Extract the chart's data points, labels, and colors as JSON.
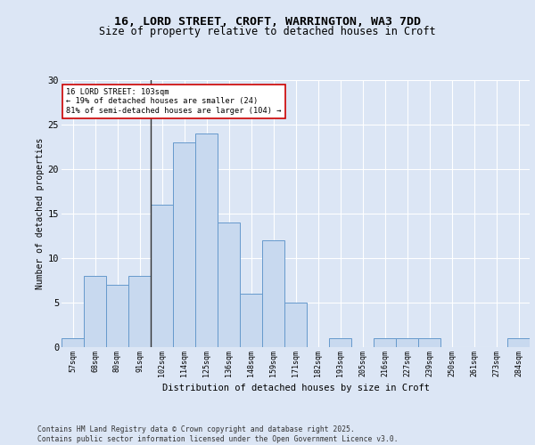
{
  "title_line1": "16, LORD STREET, CROFT, WARRINGTON, WA3 7DD",
  "title_line2": "Size of property relative to detached houses in Croft",
  "xlabel": "Distribution of detached houses by size in Croft",
  "ylabel": "Number of detached properties",
  "categories": [
    "57sqm",
    "68sqm",
    "80sqm",
    "91sqm",
    "102sqm",
    "114sqm",
    "125sqm",
    "136sqm",
    "148sqm",
    "159sqm",
    "171sqm",
    "182sqm",
    "193sqm",
    "205sqm",
    "216sqm",
    "227sqm",
    "239sqm",
    "250sqm",
    "261sqm",
    "273sqm",
    "284sqm"
  ],
  "values": [
    1,
    8,
    7,
    8,
    16,
    23,
    24,
    14,
    6,
    12,
    5,
    0,
    1,
    0,
    1,
    1,
    1,
    0,
    0,
    0,
    1
  ],
  "bar_color": "#c8d9ef",
  "bar_edge_color": "#6699cc",
  "vline_x_index": 4,
  "vline_color": "#333333",
  "ylim": [
    0,
    30
  ],
  "yticks": [
    0,
    5,
    10,
    15,
    20,
    25,
    30
  ],
  "annotation_text": "16 LORD STREET: 103sqm\n← 19% of detached houses are smaller (24)\n81% of semi-detached houses are larger (104) →",
  "annotation_box_color": "#ffffff",
  "annotation_box_edge_color": "#cc0000",
  "footer_text": "Contains HM Land Registry data © Crown copyright and database right 2025.\nContains public sector information licensed under the Open Government Licence v3.0.",
  "background_color": "#dce6f5",
  "plot_bg_color": "#dce6f5"
}
